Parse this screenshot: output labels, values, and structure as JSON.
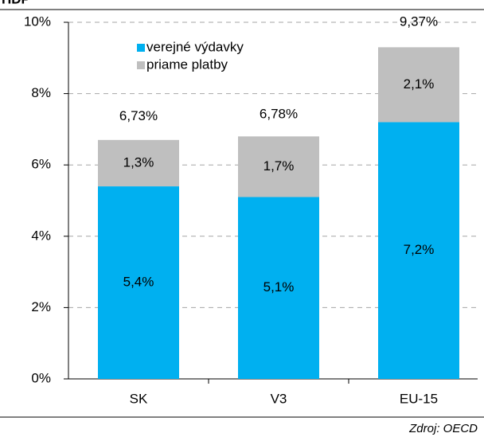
{
  "chart_data": {
    "type": "stacked_bar",
    "unit": "HDP",
    "source": "Zdroj: OECD",
    "categories": [
      "SK",
      "V3",
      "EU-15"
    ],
    "series": [
      {
        "name": "verejné výdavky",
        "color": "#00b0f0",
        "values": [
          5.4,
          5.1,
          7.2
        ],
        "value_labels": [
          "5,4%",
          "5,1%",
          "7,2%"
        ]
      },
      {
        "name": "priame platby",
        "color": "#bfbfbf",
        "values": [
          1.3,
          1.7,
          2.1
        ],
        "value_labels": [
          "1,3%",
          "1,7%",
          "2,1%"
        ]
      }
    ],
    "totals": [
      6.73,
      6.78,
      9.37
    ],
    "total_labels": [
      "6,73%",
      "6,78%",
      "9,37%"
    ],
    "ylim": [
      0,
      10
    ],
    "yticks": [
      {
        "value": 0,
        "label": "0%"
      },
      {
        "value": 2,
        "label": "2%"
      },
      {
        "value": 4,
        "label": "4%"
      },
      {
        "value": 6,
        "label": "6%"
      },
      {
        "value": 8,
        "label": "8%"
      },
      {
        "value": 10,
        "label": "10%"
      }
    ],
    "grid": true,
    "legend": "top-left"
  }
}
